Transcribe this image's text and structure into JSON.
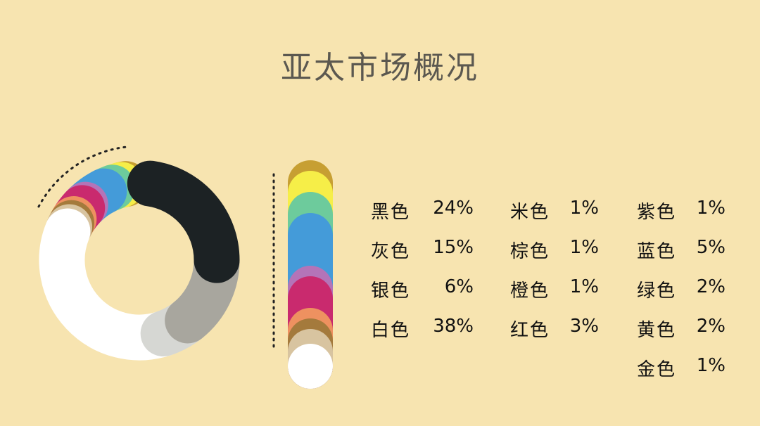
{
  "chart_data": {
    "type": "pie",
    "title": "亚太市场概况",
    "slices": [
      {
        "label": "黑色",
        "value": 24,
        "display": "24%",
        "color": "#1c2224"
      },
      {
        "label": "灰色",
        "value": 15,
        "display": "15%",
        "color": "#a8a69e"
      },
      {
        "label": "银色",
        "value": 6,
        "display": "6%",
        "color": "#d6d7d3"
      },
      {
        "label": "白色",
        "value": 38,
        "display": "38%",
        "color": "#ffffff"
      },
      {
        "label": "米色",
        "value": 1,
        "display": "1%",
        "color": "#d8c4a0"
      },
      {
        "label": "棕色",
        "value": 1,
        "display": "1%",
        "color": "#a47a3c"
      },
      {
        "label": "橙色",
        "value": 1,
        "display": "1%",
        "color": "#ee9160"
      },
      {
        "label": "红色",
        "value": 3,
        "display": "3%",
        "color": "#c92a6e"
      },
      {
        "label": "紫色",
        "value": 1,
        "display": "1%",
        "color": "#b474b8"
      },
      {
        "label": "蓝色",
        "value": 5,
        "display": "5%",
        "color": "#449bd9"
      },
      {
        "label": "绿色",
        "value": 2,
        "display": "2%",
        "color": "#6dcb9c"
      },
      {
        "label": "黄色",
        "value": 2,
        "display": "2%",
        "color": "#f6ee48"
      },
      {
        "label": "金色",
        "value": 1,
        "display": "1%",
        "color": "#c79f32"
      }
    ],
    "donut": true,
    "legend_position": "right"
  }
}
